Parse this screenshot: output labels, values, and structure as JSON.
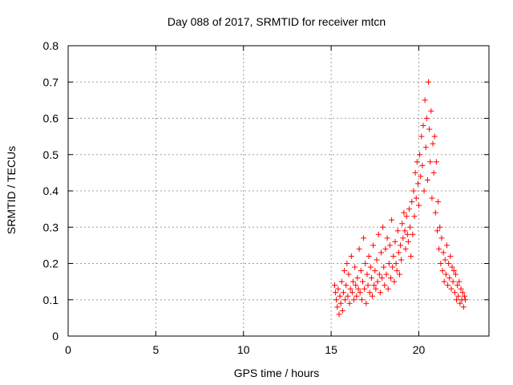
{
  "chart_data": {
    "type": "scatter",
    "title": "Day 088 of 2017, SRMTID for receiver mtcn",
    "xlabel": "GPS time / hours",
    "ylabel": "SRMTID / TECUs",
    "xlim": [
      0,
      24
    ],
    "ylim": [
      0,
      0.8
    ],
    "xticks": [
      0,
      5,
      10,
      15,
      20
    ],
    "yticks": [
      0,
      0.1,
      0.2,
      0.3,
      0.4,
      0.5,
      0.6,
      0.7,
      0.8
    ],
    "grid": true,
    "marker": "+",
    "series": [
      {
        "name": "mtcn",
        "color": "#ff0000",
        "points": [
          [
            15.2,
            0.14
          ],
          [
            15.25,
            0.12
          ],
          [
            15.3,
            0.1
          ],
          [
            15.35,
            0.08
          ],
          [
            15.4,
            0.13
          ],
          [
            15.45,
            0.06
          ],
          [
            15.5,
            0.11
          ],
          [
            15.55,
            0.09
          ],
          [
            15.6,
            0.15
          ],
          [
            15.65,
            0.07
          ],
          [
            15.7,
            0.12
          ],
          [
            15.75,
            0.18
          ],
          [
            15.8,
            0.1
          ],
          [
            15.85,
            0.14
          ],
          [
            15.9,
            0.2
          ],
          [
            15.95,
            0.11
          ],
          [
            16.0,
            0.17
          ],
          [
            16.05,
            0.09
          ],
          [
            16.1,
            0.13
          ],
          [
            16.15,
            0.22
          ],
          [
            16.2,
            0.12
          ],
          [
            16.25,
            0.15
          ],
          [
            16.3,
            0.1
          ],
          [
            16.35,
            0.19
          ],
          [
            16.4,
            0.14
          ],
          [
            16.45,
            0.11
          ],
          [
            16.5,
            0.16
          ],
          [
            16.55,
            0.13
          ],
          [
            16.6,
            0.24
          ],
          [
            16.65,
            0.12
          ],
          [
            16.7,
            0.18
          ],
          [
            16.75,
            0.1
          ],
          [
            16.8,
            0.15
          ],
          [
            16.85,
            0.27
          ],
          [
            16.9,
            0.13
          ],
          [
            16.95,
            0.2
          ],
          [
            17.0,
            0.09
          ],
          [
            17.05,
            0.17
          ],
          [
            17.1,
            0.14
          ],
          [
            17.15,
            0.22
          ],
          [
            17.2,
            0.12
          ],
          [
            17.25,
            0.19
          ],
          [
            17.3,
            0.16
          ],
          [
            17.35,
            0.11
          ],
          [
            17.4,
            0.25
          ],
          [
            17.45,
            0.14
          ],
          [
            17.5,
            0.18
          ],
          [
            17.55,
            0.13
          ],
          [
            17.6,
            0.21
          ],
          [
            17.65,
            0.15
          ],
          [
            17.7,
            0.28
          ],
          [
            17.75,
            0.17
          ],
          [
            17.8,
            0.12
          ],
          [
            17.85,
            0.23
          ],
          [
            17.9,
            0.16
          ],
          [
            17.95,
            0.3
          ],
          [
            18.0,
            0.19
          ],
          [
            18.05,
            0.14
          ],
          [
            18.1,
            0.24
          ],
          [
            18.15,
            0.17
          ],
          [
            18.2,
            0.27
          ],
          [
            18.25,
            0.13
          ],
          [
            18.3,
            0.2
          ],
          [
            18.35,
            0.25
          ],
          [
            18.4,
            0.16
          ],
          [
            18.45,
            0.32
          ],
          [
            18.5,
            0.19
          ],
          [
            18.55,
            0.22
          ],
          [
            18.6,
            0.15
          ],
          [
            18.65,
            0.26
          ],
          [
            18.7,
            0.2
          ],
          [
            18.75,
            0.18
          ],
          [
            18.8,
            0.29
          ],
          [
            18.85,
            0.23
          ],
          [
            18.9,
            0.17
          ],
          [
            18.95,
            0.25
          ],
          [
            19.0,
            0.21
          ],
          [
            19.05,
            0.31
          ],
          [
            19.1,
            0.27
          ],
          [
            19.15,
            0.34
          ],
          [
            19.2,
            0.29
          ],
          [
            19.25,
            0.24
          ],
          [
            19.3,
            0.33
          ],
          [
            19.35,
            0.28
          ],
          [
            19.4,
            0.26
          ],
          [
            19.45,
            0.35
          ],
          [
            19.5,
            0.3
          ],
          [
            19.55,
            0.22
          ],
          [
            19.6,
            0.37
          ],
          [
            19.65,
            0.28
          ],
          [
            19.7,
            0.4
          ],
          [
            19.75,
            0.33
          ],
          [
            19.8,
            0.45
          ],
          [
            19.85,
            0.38
          ],
          [
            19.9,
            0.48
          ],
          [
            19.95,
            0.42
          ],
          [
            20.0,
            0.36
          ],
          [
            20.05,
            0.5
          ],
          [
            20.1,
            0.44
          ],
          [
            20.15,
            0.55
          ],
          [
            20.2,
            0.47
          ],
          [
            20.25,
            0.58
          ],
          [
            20.3,
            0.4
          ],
          [
            20.35,
            0.65
          ],
          [
            20.4,
            0.52
          ],
          [
            20.45,
            0.6
          ],
          [
            20.5,
            0.43
          ],
          [
            20.55,
            0.7
          ],
          [
            20.6,
            0.57
          ],
          [
            20.65,
            0.48
          ],
          [
            20.7,
            0.62
          ],
          [
            20.75,
            0.38
          ],
          [
            20.8,
            0.53
          ],
          [
            20.85,
            0.45
          ],
          [
            20.9,
            0.55
          ],
          [
            20.95,
            0.34
          ],
          [
            21.0,
            0.48
          ],
          [
            21.05,
            0.29
          ],
          [
            21.1,
            0.37
          ],
          [
            21.15,
            0.24
          ],
          [
            21.2,
            0.3
          ],
          [
            21.25,
            0.2
          ],
          [
            21.3,
            0.27
          ],
          [
            21.35,
            0.18
          ],
          [
            21.4,
            0.23
          ],
          [
            21.45,
            0.15
          ],
          [
            21.5,
            0.21
          ],
          [
            21.55,
            0.17
          ],
          [
            21.6,
            0.25
          ],
          [
            21.65,
            0.14
          ],
          [
            21.7,
            0.2
          ],
          [
            21.75,
            0.16
          ],
          [
            21.8,
            0.22
          ],
          [
            21.85,
            0.13
          ],
          [
            21.9,
            0.19
          ],
          [
            21.95,
            0.15
          ],
          [
            22.0,
            0.18
          ],
          [
            22.05,
            0.12
          ],
          [
            22.1,
            0.17
          ],
          [
            22.15,
            0.1
          ],
          [
            22.2,
            0.14
          ],
          [
            22.25,
            0.11
          ],
          [
            22.3,
            0.15
          ],
          [
            22.35,
            0.09
          ],
          [
            22.4,
            0.13
          ],
          [
            22.45,
            0.1
          ],
          [
            22.5,
            0.12
          ],
          [
            22.55,
            0.08
          ],
          [
            22.6,
            0.11
          ],
          [
            22.65,
            0.1
          ]
        ]
      }
    ]
  }
}
